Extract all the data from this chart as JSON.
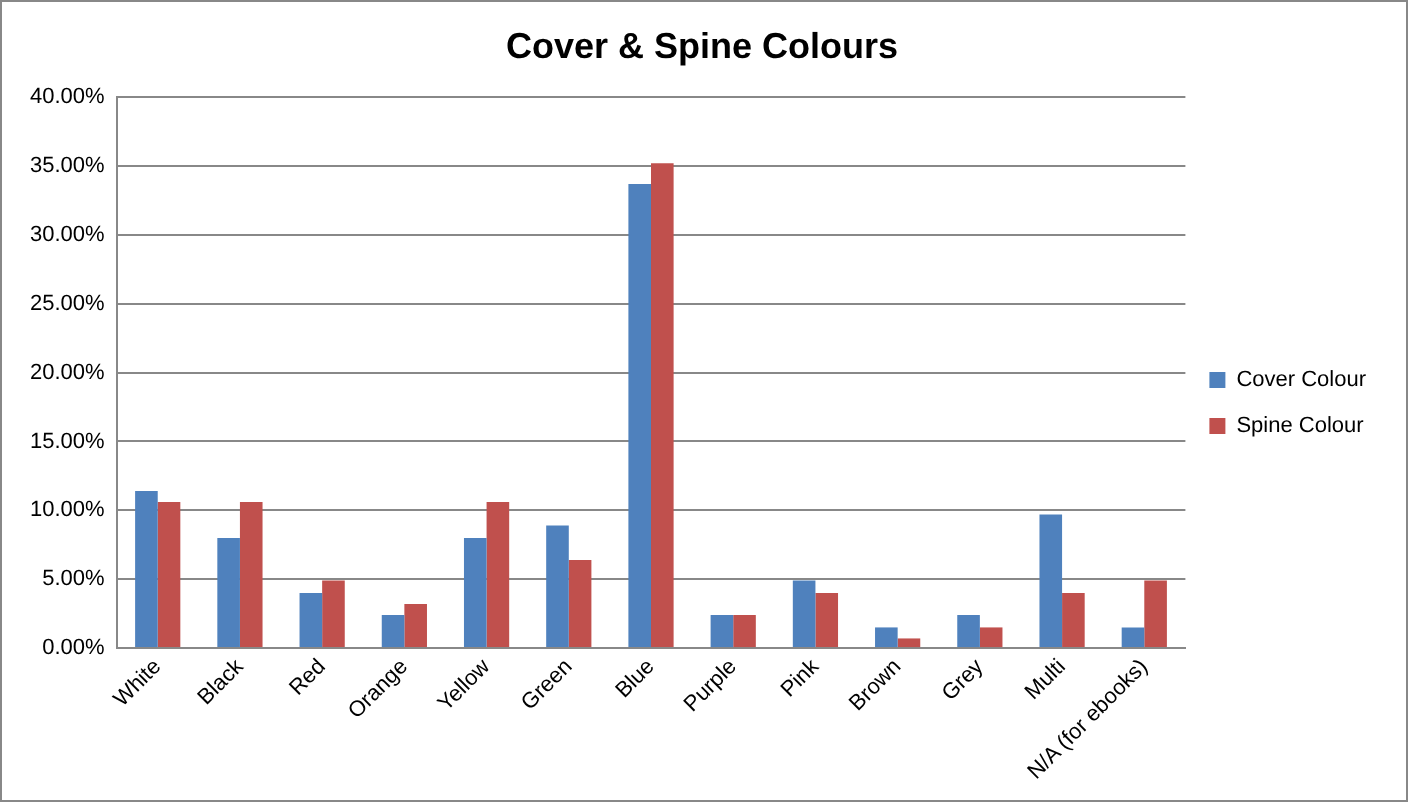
{
  "chart_data": {
    "type": "bar",
    "title": "Cover & Spine Colours",
    "categories": [
      "White",
      "Black",
      "Red",
      "Orange",
      "Yellow",
      "Green",
      "Blue",
      "Purple",
      "Pink",
      "Brown",
      "Grey",
      "Multi",
      "N/A (for ebooks)"
    ],
    "series": [
      {
        "name": "Cover Colour",
        "color": "#4f81bd",
        "values": [
          11.4,
          8.0,
          4.0,
          2.4,
          8.0,
          8.9,
          33.7,
          2.4,
          4.9,
          1.5,
          2.4,
          9.7,
          1.5
        ]
      },
      {
        "name": "Spine Colour",
        "color": "#c0504d",
        "values": [
          10.6,
          10.6,
          4.9,
          3.2,
          10.6,
          6.4,
          35.2,
          2.4,
          4.0,
          0.7,
          1.5,
          4.0,
          4.9
        ]
      }
    ],
    "ylim": [
      0,
      40
    ],
    "yticks": [
      {
        "value": 0,
        "label": "0.00%"
      },
      {
        "value": 5,
        "label": "5.00%"
      },
      {
        "value": 10,
        "label": "10.00%"
      },
      {
        "value": 15,
        "label": "15.00%"
      },
      {
        "value": 20,
        "label": "20.00%"
      },
      {
        "value": 25,
        "label": "25.00%"
      },
      {
        "value": 30,
        "label": "30.00%"
      },
      {
        "value": 35,
        "label": "35.00%"
      },
      {
        "value": 40,
        "label": "40.00%"
      }
    ],
    "grid": "y",
    "legend": "right"
  }
}
